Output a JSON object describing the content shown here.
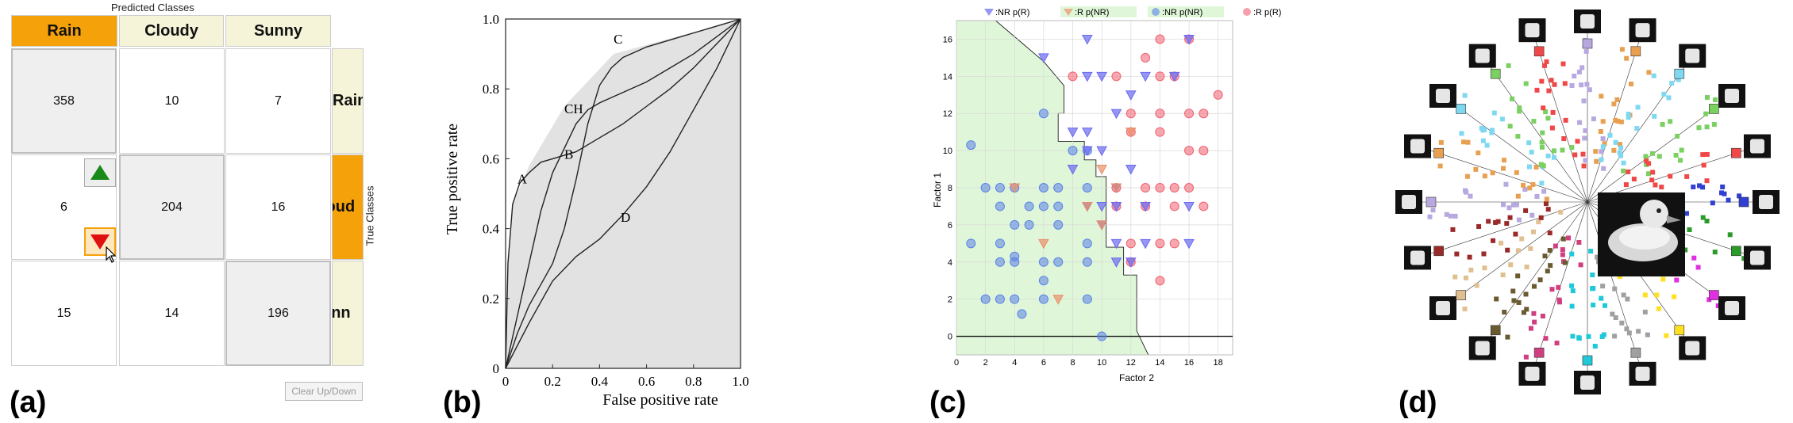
{
  "labels": {
    "a": "(a)",
    "b": "(b)",
    "c": "(c)",
    "d": "(d)"
  },
  "confusion": {
    "predicted_title": "Predicted Classes",
    "true_title": "True Classes",
    "col_headers": [
      "Rain",
      "Cloudy",
      "Sunny"
    ],
    "row_headers": [
      "Rain",
      "loud",
      "unn"
    ],
    "matrix": [
      [
        "358",
        "10",
        "7"
      ],
      [
        "6",
        "204",
        "16"
      ],
      [
        "15",
        "14",
        "196"
      ]
    ],
    "clear_label": "Clear Up/Down",
    "up_icon": "triangle-up-icon",
    "down_icon": "triangle-down-icon",
    "colors": {
      "selected": "#f5a10a",
      "header": "#f6f4d8",
      "up": "#1a8a1a",
      "down": "#e01010"
    }
  },
  "chart_data": [
    {
      "type": "line",
      "xlabel": "False positive rate",
      "ylabel": "True positive rate",
      "xlim": [
        0,
        1.0
      ],
      "ylim": [
        0,
        1.0
      ],
      "xticks": [
        "0",
        "0.2",
        "0.4",
        "0.6",
        "0.8",
        "1.0"
      ],
      "yticks": [
        "0",
        "0.2",
        "0.4",
        "0.6",
        "0.8",
        "1.0"
      ],
      "series": [
        {
          "name": "A",
          "x": [
            0,
            0.01,
            0.03,
            0.06,
            0.1,
            0.15,
            0.2,
            0.3,
            0.4,
            0.5,
            0.6,
            0.7,
            0.8,
            0.9,
            1.0
          ],
          "y": [
            0,
            0.3,
            0.47,
            0.53,
            0.56,
            0.59,
            0.6,
            0.62,
            0.66,
            0.7,
            0.75,
            0.8,
            0.86,
            0.93,
            1.0
          ]
        },
        {
          "name": "B",
          "x": [
            0,
            0.05,
            0.1,
            0.15,
            0.2,
            0.25,
            0.3,
            0.35,
            0.4,
            0.5,
            0.6,
            0.7,
            0.8,
            0.9,
            1.0
          ],
          "y": [
            0,
            0.15,
            0.3,
            0.45,
            0.56,
            0.63,
            0.7,
            0.74,
            0.76,
            0.79,
            0.82,
            0.86,
            0.9,
            0.95,
            1.0
          ]
        },
        {
          "name": "C",
          "x": [
            0,
            0.05,
            0.1,
            0.15,
            0.2,
            0.25,
            0.3,
            0.35,
            0.4,
            0.45,
            0.5,
            0.6,
            0.7,
            0.8,
            0.9,
            1.0
          ],
          "y": [
            0,
            0.1,
            0.18,
            0.24,
            0.3,
            0.4,
            0.54,
            0.7,
            0.81,
            0.86,
            0.89,
            0.92,
            0.94,
            0.96,
            0.98,
            1.0
          ]
        },
        {
          "name": "D",
          "x": [
            0,
            0.1,
            0.2,
            0.3,
            0.4,
            0.5,
            0.6,
            0.7,
            0.8,
            0.9,
            1.0
          ],
          "y": [
            0,
            0.13,
            0.25,
            0.32,
            0.37,
            0.44,
            0.52,
            0.62,
            0.74,
            0.86,
            1.0
          ]
        }
      ],
      "annotations": [
        {
          "text": "A",
          "x": 0.05,
          "y": 0.53
        },
        {
          "text": "B",
          "x": 0.25,
          "y": 0.6
        },
        {
          "text": "CH",
          "x": 0.25,
          "y": 0.73
        },
        {
          "text": "C",
          "x": 0.46,
          "y": 0.93
        },
        {
          "text": "D",
          "x": 0.49,
          "y": 0.42
        }
      ],
      "colors": {
        "area": "#e2e2e2",
        "line": "#222222"
      }
    },
    {
      "type": "scatter",
      "xlabel": "Factor 2",
      "ylabel": "Factor 1",
      "xlim": [
        0,
        19
      ],
      "ylim": [
        -1,
        17
      ],
      "xticks": [
        "0",
        "2",
        "4",
        "6",
        "8",
        "10",
        "12",
        "14",
        "16",
        "18"
      ],
      "yticks": [
        "0",
        "2",
        "4",
        "6",
        "8",
        "10",
        "12",
        "14",
        "16"
      ],
      "grid": true,
      "legend": [
        "▽:NR p(R)",
        "▽:R p(NR)",
        "○:NR p(NR)",
        "○:R p(R)"
      ],
      "region_boundary": [
        [
          2.7,
          17
        ],
        [
          4.5,
          15.8
        ],
        [
          6,
          14.8
        ],
        [
          7.4,
          13.5
        ],
        [
          7.4,
          12
        ],
        [
          7.0,
          12
        ],
        [
          7.0,
          10.5
        ],
        [
          8.8,
          10.5
        ],
        [
          8.8,
          9.5
        ],
        [
          9.6,
          9.5
        ],
        [
          9.6,
          8.6
        ],
        [
          10.3,
          8.6
        ],
        [
          10.3,
          4.8
        ],
        [
          11.5,
          4.8
        ],
        [
          11.5,
          3.3
        ],
        [
          12.4,
          3.3
        ],
        [
          12.4,
          0.3
        ],
        [
          13.2,
          -1
        ]
      ],
      "nr_pr_triangles": [
        [
          9,
          16
        ],
        [
          6,
          15
        ],
        [
          9,
          14
        ],
        [
          10,
          14
        ],
        [
          13,
          14
        ],
        [
          15,
          14
        ],
        [
          16,
          16
        ],
        [
          8,
          11
        ],
        [
          9,
          11
        ],
        [
          11,
          12
        ],
        [
          12,
          13
        ],
        [
          9,
          10
        ],
        [
          10,
          10
        ],
        [
          8,
          9
        ],
        [
          11,
          8
        ],
        [
          12,
          9
        ],
        [
          9,
          7
        ],
        [
          10,
          7
        ],
        [
          11,
          7
        ],
        [
          13,
          7
        ],
        [
          16,
          7
        ],
        [
          10,
          6
        ],
        [
          11,
          5
        ],
        [
          13,
          5
        ],
        [
          16,
          5
        ],
        [
          11,
          4
        ],
        [
          12,
          4
        ]
      ],
      "r_pnr_triangles": [
        [
          4,
          8
        ],
        [
          10,
          9
        ],
        [
          11,
          8
        ],
        [
          12,
          11
        ],
        [
          10,
          6
        ],
        [
          9,
          7
        ],
        [
          6,
          5
        ],
        [
          7,
          2
        ]
      ],
      "nr_pnr_circles": [
        [
          1,
          10.3
        ],
        [
          6,
          12
        ],
        [
          8,
          10
        ],
        [
          9,
          10
        ],
        [
          2,
          8
        ],
        [
          3,
          8
        ],
        [
          4,
          8
        ],
        [
          6,
          8
        ],
        [
          7,
          8
        ],
        [
          9,
          8
        ],
        [
          3,
          7
        ],
        [
          5,
          7
        ],
        [
          6,
          7
        ],
        [
          7,
          7
        ],
        [
          1,
          5
        ],
        [
          3,
          5
        ],
        [
          4,
          6
        ],
        [
          5,
          6
        ],
        [
          7,
          6
        ],
        [
          9,
          5
        ],
        [
          3,
          4
        ],
        [
          4,
          4
        ],
        [
          4,
          4.3
        ],
        [
          6,
          4
        ],
        [
          7,
          4
        ],
        [
          9,
          4
        ],
        [
          6,
          3
        ],
        [
          2,
          2
        ],
        [
          3,
          2
        ],
        [
          4,
          2
        ],
        [
          6,
          2
        ],
        [
          9,
          2
        ],
        [
          4.5,
          1.2
        ],
        [
          10,
          0
        ]
      ],
      "r_pr_circles": [
        [
          8,
          14
        ],
        [
          11,
          14
        ],
        [
          13,
          15
        ],
        [
          14,
          16
        ],
        [
          14,
          14
        ],
        [
          15,
          14
        ],
        [
          16,
          16
        ],
        [
          12,
          12
        ],
        [
          14,
          12
        ],
        [
          16,
          12
        ],
        [
          17,
          12
        ],
        [
          18,
          13
        ],
        [
          12,
          11
        ],
        [
          14,
          11
        ],
        [
          16,
          10
        ],
        [
          17,
          10
        ],
        [
          11,
          8
        ],
        [
          13,
          8
        ],
        [
          14,
          8
        ],
        [
          15,
          8
        ],
        [
          16,
          8
        ],
        [
          11,
          7
        ],
        [
          13,
          7
        ],
        [
          17,
          7
        ],
        [
          12,
          5
        ],
        [
          14,
          5
        ],
        [
          15,
          5
        ],
        [
          12,
          4
        ],
        [
          14,
          3
        ],
        [
          15,
          7
        ]
      ],
      "colors": {
        "region": "#dff7d8",
        "triangle_nr": "#6a6af0",
        "triangle_r": "#e9906a",
        "circle_nr": "#5a82e8",
        "circle_r": "#f06070"
      }
    }
  ],
  "projection": {
    "center_image": "rubber-duck-image",
    "thumbnails": [
      "duck-thumb",
      "cat-figurine-thumb",
      "box-tetra-thumb",
      "bowl-thumb",
      "camera-thumb",
      "mug-thumb",
      "cup-thumb",
      "car-thumb",
      "mushroom-lamp-thumb",
      "toy-car-thumb",
      "dog-figurine-thumb",
      "small-car-thumb",
      "sauce-bottle-thumb",
      "tub-thumb",
      "bottle-thumb",
      "container-thumb",
      "jar-thumb",
      "box-thumb",
      "doll-thumb",
      "sponge-thumb"
    ],
    "colors": [
      "#b7a8e0",
      "#e8a050",
      "#7fd8f0",
      "#7ad060",
      "#f04848",
      "#3040d0",
      "#2a9a2a",
      "#e030e0",
      "#ffe020",
      "#a0a0a0",
      "#20c8d8",
      "#d04080",
      "#6a5a30",
      "#e0c090",
      "#9a2a2a"
    ]
  }
}
